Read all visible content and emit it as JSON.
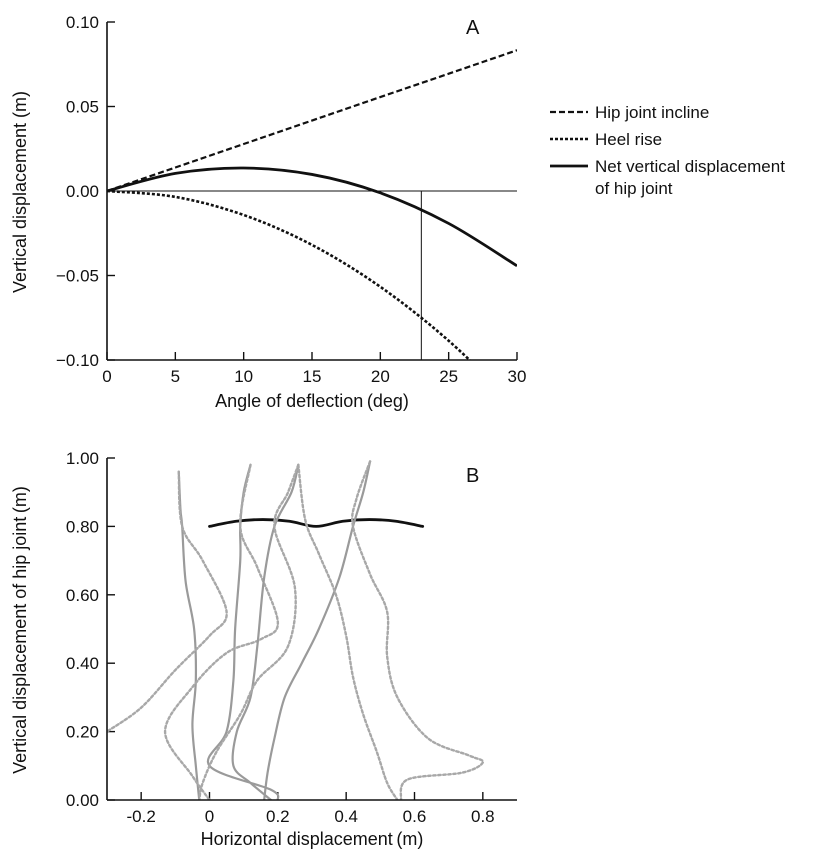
{
  "chart_data": [
    {
      "panel": "A",
      "type": "line",
      "xlabel": "Angle of deflection (deg)",
      "ylabel": "Vertical displacement (m)",
      "xlim": [
        0,
        30
      ],
      "ylim": [
        -0.1,
        0.1
      ],
      "xticks": [
        "0",
        "5",
        "10",
        "15",
        "20",
        "25",
        "30"
      ],
      "yticks": [
        "−0.10",
        "−0.05",
        "0.00",
        "0.05",
        "0.10"
      ],
      "grid": false,
      "legend_position": "right, outside plot",
      "series": [
        {
          "name": "Hip joint incline",
          "style": "dashed",
          "x": [
            0,
            5,
            10,
            15,
            20,
            25,
            30
          ],
          "y": [
            0,
            0.0139,
            0.0278,
            0.0417,
            0.0556,
            0.0694,
            0.0833
          ]
        },
        {
          "name": "Heel rise",
          "style": "dotted",
          "x": [
            0,
            5,
            10,
            15,
            20,
            25,
            30
          ],
          "y": [
            0,
            -0.0035,
            -0.0142,
            -0.0319,
            -0.0567,
            -0.0886,
            -0.1276
          ]
        },
        {
          "name": "Net vertical displacement of hip joint",
          "style": "solid",
          "x": [
            0,
            5,
            10,
            15,
            20,
            25,
            30
          ],
          "y": [
            0,
            0.0104,
            0.0136,
            0.0098,
            -0.0011,
            -0.0192,
            -0.0443
          ]
        }
      ],
      "annotations": [
        {
          "type": "hline",
          "y": 0
        },
        {
          "type": "vline",
          "x": 23,
          "from_y": -0.1,
          "to_y": 0
        }
      ],
      "legend": [
        "Hip joint incline",
        "Heel rise",
        "Net vertical displacement",
        "of hip joint"
      ]
    },
    {
      "panel": "B",
      "type": "line",
      "xlabel": "Horizontal displacement (m)",
      "ylabel": "Vertical displacement of hip joint (m)",
      "xlim": [
        -0.3,
        0.9
      ],
      "ylim": [
        0,
        1.0
      ],
      "xticks": [
        "-0.2",
        "0",
        "0.2",
        "0.4",
        "0.6",
        "0.8"
      ],
      "yticks": [
        "0.00",
        "0.20",
        "0.40",
        "0.60",
        "0.80",
        "1.00"
      ],
      "grid": false,
      "series": [
        {
          "style": "solid-black",
          "x": [
            0,
            0.078,
            0.156,
            0.234,
            0.312,
            0.39,
            0.468,
            0.546,
            0.624
          ],
          "y": [
            0.8,
            0.815,
            0.82,
            0.815,
            0.8,
            0.815,
            0.82,
            0.815,
            0.8
          ]
        },
        {
          "style": "solid-gray",
          "x": [
            -0.09,
            -0.085,
            -0.08,
            -0.07,
            -0.045,
            -0.04,
            -0.05,
            -0.04,
            -0.03
          ],
          "y": [
            0.96,
            0.85,
            0.8,
            0.64,
            0.5,
            0.35,
            0.22,
            0.1,
            0.0
          ]
        },
        {
          "style": "dotted-gray",
          "x": [
            -0.09,
            -0.08,
            -0.02,
            0.05,
            0.0,
            -0.1,
            -0.2,
            -0.3
          ],
          "y": [
            0.96,
            0.8,
            0.7,
            0.55,
            0.48,
            0.38,
            0.27,
            0.2
          ]
        },
        {
          "style": "solid-gray",
          "x": [
            0.12,
            0.1,
            0.09,
            0.09,
            0.075,
            0.07,
            0.05,
            0.0,
            0.18,
            0.2
          ],
          "y": [
            0.98,
            0.9,
            0.8,
            0.7,
            0.5,
            0.35,
            0.2,
            0.1,
            0.03,
            0.0
          ]
        },
        {
          "style": "dotted-gray",
          "x": [
            0.12,
            0.09,
            0.14,
            0.2,
            0.15,
            0.05,
            -0.05,
            -0.13,
            -0.05,
            0.0
          ],
          "y": [
            0.98,
            0.8,
            0.68,
            0.52,
            0.47,
            0.43,
            0.33,
            0.2,
            0.07,
            0.0
          ]
        },
        {
          "style": "solid-gray",
          "x": [
            0.26,
            0.24,
            0.19,
            0.16,
            0.14,
            0.12,
            0.08,
            0.07,
            0.12,
            0.18
          ],
          "y": [
            0.98,
            0.9,
            0.8,
            0.65,
            0.45,
            0.3,
            0.2,
            0.1,
            0.05,
            0.0
          ]
        },
        {
          "style": "dotted-gray",
          "x": [
            0.26,
            0.23,
            0.19,
            0.25,
            0.23,
            0.14,
            0.09,
            0.02,
            -0.02,
            -0.03
          ],
          "y": [
            0.98,
            0.9,
            0.8,
            0.62,
            0.45,
            0.35,
            0.25,
            0.14,
            0.05,
            0.0
          ]
        },
        {
          "style": "solid-gray",
          "x": [
            0.47,
            0.45,
            0.42,
            0.38,
            0.32,
            0.27,
            0.22,
            0.19,
            0.17,
            0.16
          ],
          "y": [
            0.99,
            0.9,
            0.8,
            0.65,
            0.5,
            0.4,
            0.3,
            0.18,
            0.08,
            0.0
          ]
        },
        {
          "style": "dotted-gray",
          "x": [
            0.47,
            0.43,
            0.42,
            0.47,
            0.52,
            0.52,
            0.55,
            0.64,
            0.76,
            0.8,
            0.74,
            0.58,
            0.56
          ],
          "y": [
            0.99,
            0.88,
            0.8,
            0.66,
            0.55,
            0.42,
            0.3,
            0.18,
            0.13,
            0.11,
            0.08,
            0.06,
            0.0
          ]
        },
        {
          "style": "dotted-gray",
          "x": [
            0.26,
            0.28,
            0.32,
            0.37,
            0.4,
            0.42,
            0.45,
            0.49,
            0.52,
            0.55
          ],
          "y": [
            0.98,
            0.82,
            0.72,
            0.6,
            0.48,
            0.36,
            0.25,
            0.14,
            0.05,
            0.0
          ]
        }
      ]
    }
  ]
}
